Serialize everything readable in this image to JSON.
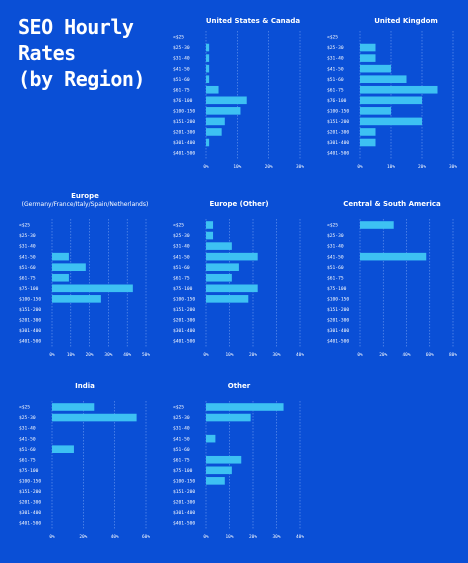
{
  "title": "SEO Hourly\nRates\n(by Region)",
  "colors": {
    "background": "#0a4fd6",
    "bar": "#3dc1f3",
    "text": "#ffffff",
    "grid": "#6f9cf0"
  },
  "chart_data": [
    {
      "type": "bar",
      "orientation": "horizontal",
      "title": "United States & Canada",
      "subtitle": "",
      "categories": [
        "<$25",
        "$25-30",
        "$31-40",
        "$41-50",
        "$51-60",
        "$61-75",
        "$76-100",
        "$100-150",
        "$151-200",
        "$201-300",
        "$301-400",
        "$401-500"
      ],
      "values": [
        0,
        1,
        1,
        1,
        1,
        4,
        13,
        11,
        6,
        5,
        1,
        0
      ],
      "xticks": [
        "0%",
        "10%",
        "20%",
        "30%"
      ],
      "xlim": [
        0,
        30
      ],
      "grid": true
    },
    {
      "type": "bar",
      "orientation": "horizontal",
      "title": "United Kingdom",
      "subtitle": "",
      "categories": [
        "<$25",
        "$25-30",
        "$31-40",
        "$41-50",
        "$51-60",
        "$61-75",
        "$76-100",
        "$100-150",
        "$151-200",
        "$201-300",
        "$301-400",
        "$401-500"
      ],
      "values": [
        0,
        5,
        5,
        10,
        15,
        25,
        20,
        10,
        20,
        5,
        5,
        0
      ],
      "xticks": [
        "0%",
        "10%",
        "20%",
        "30%"
      ],
      "xlim": [
        0,
        30
      ],
      "grid": true
    },
    {
      "type": "bar",
      "orientation": "horizontal",
      "title": "Europe",
      "subtitle": "(Germany/France/Italy/Spain/Netherlands)",
      "categories": [
        "<$25",
        "$25-30",
        "$31-40",
        "$41-50",
        "$51-60",
        "$61-75",
        "$75-100",
        "$100-150",
        "$151-200",
        "$201-300",
        "$301-400",
        "$401-500"
      ],
      "values": [
        0,
        0,
        0,
        9,
        18,
        9,
        43,
        26,
        0,
        0,
        0,
        0
      ],
      "xticks": [
        "0%",
        "10%",
        "20%",
        "30%",
        "40%",
        "50%"
      ],
      "xlim": [
        0,
        50
      ],
      "grid": true
    },
    {
      "type": "bar",
      "orientation": "horizontal",
      "title": "Europe (Other)",
      "subtitle": "",
      "categories": [
        "<$25",
        "$25-30",
        "$31-40",
        "$41-50",
        "$51-60",
        "$61-75",
        "$75-100",
        "$100-150",
        "$151-200",
        "$201-300",
        "$301-400",
        "$401-500"
      ],
      "values": [
        3,
        3,
        11,
        22,
        14,
        11,
        22,
        18,
        0,
        0,
        0,
        0
      ],
      "xticks": [
        "0%",
        "10%",
        "20%",
        "30%",
        "40%"
      ],
      "xlim": [
        0,
        40
      ],
      "grid": true
    },
    {
      "type": "bar",
      "orientation": "horizontal",
      "title": "Central & South America",
      "subtitle": "",
      "categories": [
        "<$25",
        "$25-30",
        "$31-40",
        "$41-50",
        "$51-60",
        "$61-75",
        "$75-100",
        "$100-150",
        "$151-200",
        "$201-300",
        "$301-400",
        "$401-500"
      ],
      "values": [
        29,
        0,
        0,
        57,
        0,
        0,
        0,
        0,
        0,
        0,
        0,
        0
      ],
      "xticks": [
        "0%",
        "20%",
        "40%",
        "60%",
        "80%"
      ],
      "xlim": [
        0,
        80
      ],
      "grid": true
    },
    {
      "type": "bar",
      "orientation": "horizontal",
      "title": "India",
      "subtitle": "",
      "categories": [
        "<$25",
        "$25-30",
        "$31-40",
        "$41-50",
        "$51-60",
        "$61-75",
        "$75-100",
        "$100-150",
        "$151-200",
        "$201-300",
        "$301-400",
        "$401-500"
      ],
      "values": [
        27,
        54,
        0,
        0,
        14,
        0,
        0,
        0,
        0,
        0,
        0,
        0
      ],
      "xticks": [
        "0%",
        "20%",
        "40%",
        "60%"
      ],
      "xlim": [
        0,
        60
      ],
      "grid": true
    },
    {
      "type": "bar",
      "orientation": "horizontal",
      "title": "Other",
      "subtitle": "",
      "categories": [
        "<$25",
        "$25-30",
        "$31-40",
        "$41-50",
        "$51-60",
        "$61-75",
        "$75-100",
        "$100-150",
        "$151-200",
        "$201-300",
        "$301-400",
        "$401-500"
      ],
      "values": [
        33,
        19,
        0,
        4,
        0,
        15,
        11,
        8,
        0,
        0,
        0,
        0
      ],
      "xticks": [
        "0%",
        "10%",
        "20%",
        "30%",
        "40%"
      ],
      "xlim": [
        0,
        40
      ],
      "grid": true
    }
  ]
}
